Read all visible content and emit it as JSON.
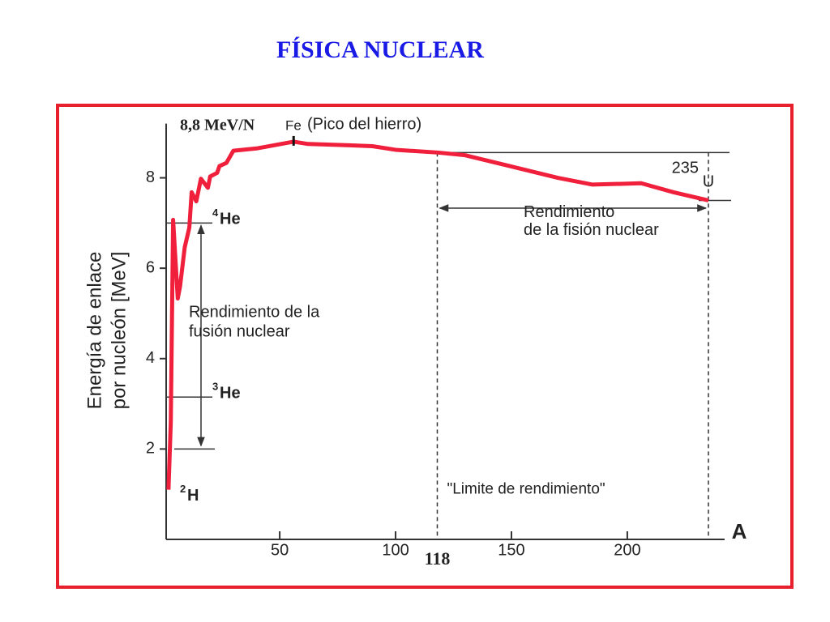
{
  "chart_data": {
    "type": "line",
    "title": "FÍSICA NUCLEAR",
    "y_label": [
      "Energía de enlace",
      "por nucleón [MeV]"
    ],
    "x_label": "A",
    "xlim": [
      1,
      242
    ],
    "ylim": [
      0,
      9.2
    ],
    "xticks": [
      50,
      100,
      150,
      200
    ],
    "yticks": [
      2,
      4,
      6,
      8
    ],
    "series": [
      {
        "color": "#f0203c",
        "x": [
          2,
          3,
          4,
          6,
          7,
          9,
          11,
          12,
          14,
          16,
          19,
          20,
          23,
          24,
          27,
          30,
          40,
          56,
          62,
          80,
          90,
          100,
          118,
          130,
          150,
          170,
          185,
          206,
          220,
          235
        ],
        "values": [
          1.1,
          2.6,
          7.07,
          5.33,
          5.6,
          6.46,
          6.9,
          7.68,
          7.48,
          7.98,
          7.78,
          8.03,
          8.11,
          8.26,
          8.33,
          8.6,
          8.65,
          8.8,
          8.75,
          8.72,
          8.7,
          8.62,
          8.56,
          8.5,
          8.25,
          8.0,
          7.85,
          7.88,
          7.68,
          7.5
        ]
      }
    ],
    "peak": {
      "x": 56,
      "value": 8.8,
      "label": "8,8 MeV/N",
      "element": "Fe",
      "note": "(Pico del hierro)"
    },
    "nuclides": [
      {
        "mass": "4",
        "symbol": "He",
        "y": 7.0
      },
      {
        "mass": "3",
        "symbol": "He",
        "y": 3.15
      },
      {
        "mass": "2",
        "symbol": "H",
        "y": 1.1
      }
    ],
    "fusion": {
      "lines": [
        "Rendimiento de la",
        "fusión nuclear"
      ],
      "from": 7.0,
      "to": 2.0
    },
    "limit": {
      "value": 118,
      "label": "118",
      "note": "\"Limite de rendimiento\"",
      "level": 8.56
    },
    "uranium": {
      "value": 235,
      "mass": "235",
      "symbol": "U",
      "y": 7.5
    },
    "fission": {
      "lines": [
        "Rendimiento",
        "de la fisión nuclear"
      ],
      "from": 118,
      "to": 235,
      "y": 7.33
    }
  }
}
